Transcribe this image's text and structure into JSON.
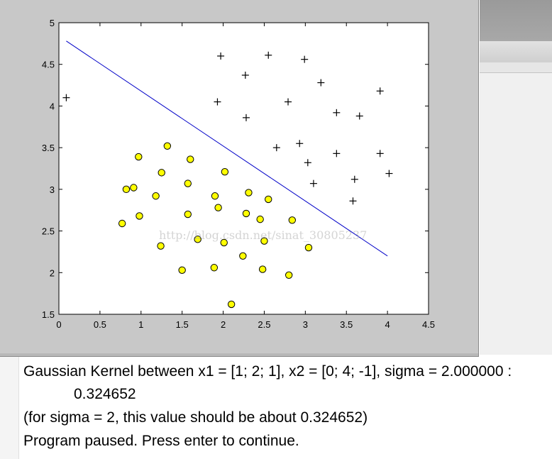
{
  "chart_data": {
    "type": "scatter",
    "xlim": [
      0,
      4.5
    ],
    "ylim": [
      1.5,
      5
    ],
    "xticks": [
      "0",
      "0.5",
      "1",
      "1.5",
      "2",
      "2.5",
      "3",
      "3.5",
      "4",
      "4.5"
    ],
    "yticks": [
      "1.5",
      "2",
      "2.5",
      "3",
      "3.5",
      "4",
      "4.5",
      "5"
    ],
    "grid": false,
    "series": [
      {
        "marker": "plus",
        "color": "#000000",
        "points": [
          [
            0.09,
            4.1
          ],
          [
            1.97,
            4.6
          ],
          [
            2.55,
            4.61
          ],
          [
            2.99,
            4.56
          ],
          [
            2.27,
            4.37
          ],
          [
            3.19,
            4.28
          ],
          [
            3.91,
            4.18
          ],
          [
            1.93,
            4.05
          ],
          [
            2.79,
            4.05
          ],
          [
            3.38,
            3.92
          ],
          [
            3.66,
            3.88
          ],
          [
            2.28,
            3.86
          ],
          [
            2.93,
            3.55
          ],
          [
            2.65,
            3.5
          ],
          [
            3.38,
            3.43
          ],
          [
            3.91,
            3.43
          ],
          [
            3.03,
            3.32
          ],
          [
            4.02,
            3.19
          ],
          [
            3.6,
            3.12
          ],
          [
            3.1,
            3.07
          ],
          [
            3.58,
            2.86
          ]
        ]
      },
      {
        "marker": "circle",
        "color": "#ffff00",
        "points": [
          [
            1.32,
            3.52
          ],
          [
            0.97,
            3.39
          ],
          [
            1.6,
            3.36
          ],
          [
            1.25,
            3.2
          ],
          [
            2.02,
            3.21
          ],
          [
            1.57,
            3.07
          ],
          [
            0.82,
            3.0
          ],
          [
            0.91,
            3.02
          ],
          [
            2.31,
            2.96
          ],
          [
            1.18,
            2.92
          ],
          [
            1.9,
            2.92
          ],
          [
            2.55,
            2.88
          ],
          [
            1.94,
            2.78
          ],
          [
            0.98,
            2.68
          ],
          [
            1.57,
            2.7
          ],
          [
            2.28,
            2.71
          ],
          [
            2.45,
            2.64
          ],
          [
            2.84,
            2.63
          ],
          [
            0.77,
            2.59
          ],
          [
            1.69,
            2.4
          ],
          [
            2.5,
            2.38
          ],
          [
            2.01,
            2.36
          ],
          [
            1.24,
            2.32
          ],
          [
            3.04,
            2.3
          ],
          [
            2.24,
            2.2
          ],
          [
            1.89,
            2.06
          ],
          [
            2.48,
            2.04
          ],
          [
            1.5,
            2.03
          ],
          [
            2.8,
            1.97
          ],
          [
            2.1,
            1.62
          ]
        ]
      }
    ],
    "boundary": {
      "color": "#0000c8",
      "points": [
        [
          0.09,
          4.78
        ],
        [
          4.0,
          2.2
        ]
      ]
    }
  },
  "console": {
    "line1": "Gaussian Kernel between x1 = [1; 2; 1], x2 = [0; 4; -1], sigma = 2.000000 :",
    "line2": "0.324652",
    "line3": "(for sigma = 2, this value should be about 0.324652)",
    "line4": "Program paused. Press enter to continue."
  },
  "watermark": "http://blog.csdn.net/sinat_30805237"
}
